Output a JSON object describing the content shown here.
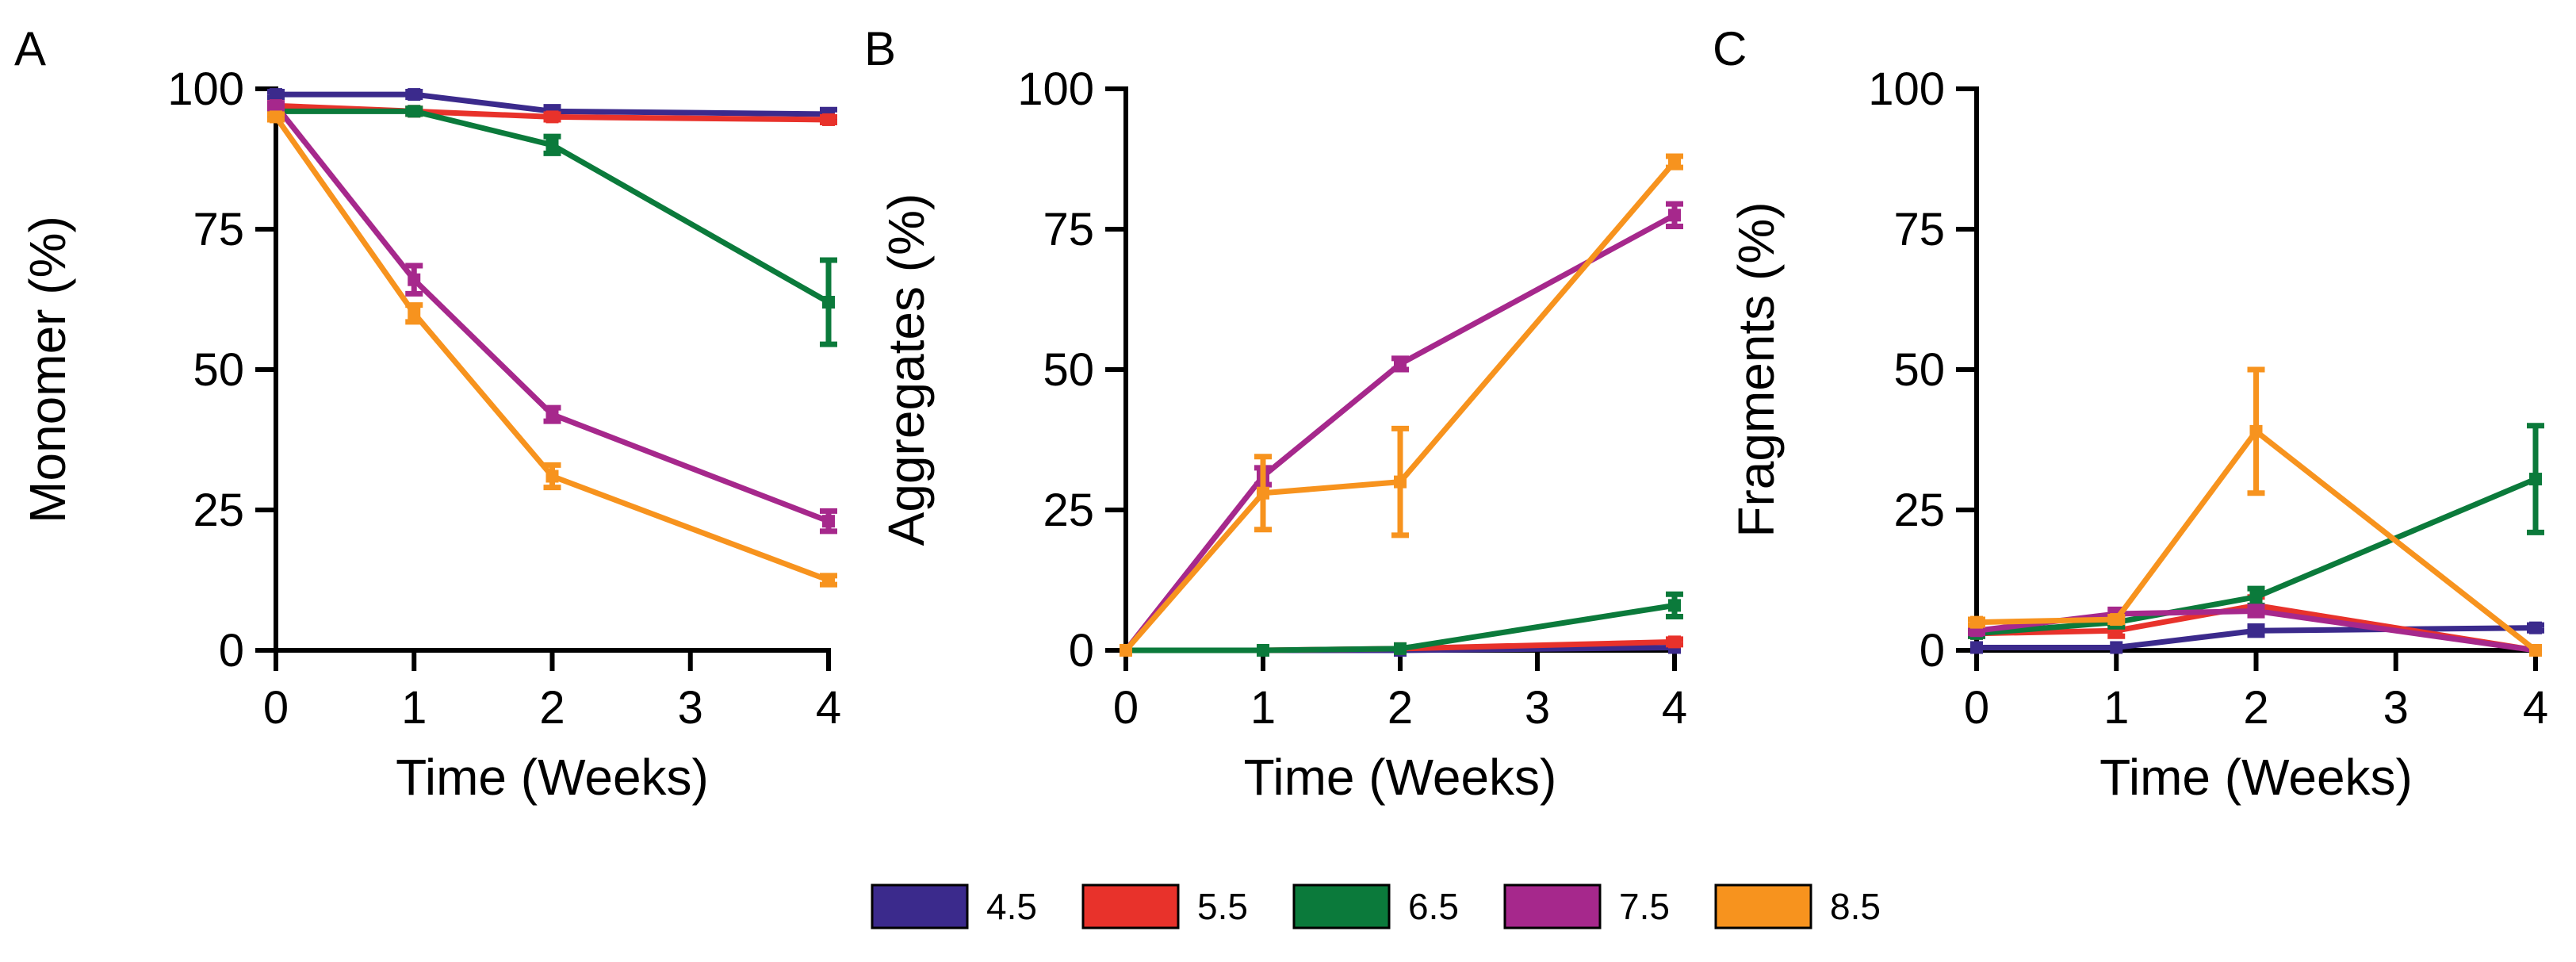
{
  "legend": {
    "items": [
      {
        "label": "4.5",
        "color": "#3B2A8C"
      },
      {
        "label": "5.5",
        "color": "#E8322B"
      },
      {
        "label": "6.5",
        "color": "#0B7A3B"
      },
      {
        "label": "7.5",
        "color": "#A6288C"
      },
      {
        "label": "8.5",
        "color": "#F7931E"
      }
    ]
  },
  "chart_data": [
    {
      "type": "line",
      "panel_label": "A",
      "title": "",
      "xlabel": "Time (Weeks)",
      "ylabel": "Monomer (%)",
      "x_ticks": [
        0,
        1,
        2,
        3,
        4
      ],
      "y_ticks": [
        0,
        25,
        50,
        75,
        100
      ],
      "xlim": [
        0,
        4
      ],
      "ylim": [
        0,
        100
      ],
      "x": [
        0,
        1,
        2,
        4
      ],
      "series": [
        {
          "name": "4.5",
          "values": [
            99,
            99,
            96,
            95.5
          ],
          "errors": [
            0.5,
            0.5,
            0.8,
            0.8
          ]
        },
        {
          "name": "5.5",
          "values": [
            97,
            96,
            95,
            94.5
          ],
          "errors": [
            0.5,
            0.5,
            0.5,
            0.5
          ]
        },
        {
          "name": "6.5",
          "values": [
            96,
            96,
            90,
            62
          ],
          "errors": [
            0.5,
            0.5,
            1.5,
            7.5
          ]
        },
        {
          "name": "7.5",
          "values": [
            97,
            66,
            42,
            23
          ],
          "errors": [
            0.5,
            2.5,
            1.2,
            1.8
          ]
        },
        {
          "name": "8.5",
          "values": [
            95,
            60,
            31,
            12.5
          ],
          "errors": [
            0.5,
            1.5,
            2,
            0.8
          ]
        }
      ]
    },
    {
      "type": "line",
      "panel_label": "B",
      "title": "",
      "xlabel": "Time (Weeks)",
      "ylabel": "Aggregates (%)",
      "x_ticks": [
        0,
        1,
        2,
        3,
        4
      ],
      "y_ticks": [
        0,
        25,
        50,
        75,
        100
      ],
      "xlim": [
        0,
        4
      ],
      "ylim": [
        0,
        100
      ],
      "x": [
        0,
        1,
        2,
        4
      ],
      "series": [
        {
          "name": "4.5",
          "values": [
            0,
            0,
            0,
            0.5
          ],
          "errors": [
            0,
            0,
            0,
            0
          ]
        },
        {
          "name": "5.5",
          "values": [
            0,
            0,
            0.3,
            1.5
          ],
          "errors": [
            0,
            0,
            0,
            0.5
          ]
        },
        {
          "name": "6.5",
          "values": [
            0,
            0,
            0.3,
            8
          ],
          "errors": [
            0,
            0,
            0,
            2
          ]
        },
        {
          "name": "7.5",
          "values": [
            0,
            31,
            51,
            77.5
          ],
          "errors": [
            0,
            1.5,
            1,
            2
          ]
        },
        {
          "name": "8.5",
          "values": [
            0,
            28,
            30,
            87
          ],
          "errors": [
            0,
            6.5,
            9.5,
            1
          ]
        }
      ]
    },
    {
      "type": "line",
      "panel_label": "C",
      "title": "",
      "xlabel": "Time (Weeks)",
      "ylabel": "Fragments (%)",
      "x_ticks": [
        0,
        1,
        2,
        3,
        4
      ],
      "y_ticks": [
        0,
        25,
        50,
        75,
        100
      ],
      "xlim": [
        0,
        4
      ],
      "ylim": [
        0,
        100
      ],
      "x": [
        0,
        1,
        2,
        4
      ],
      "series": [
        {
          "name": "4.5",
          "values": [
            0.5,
            0.5,
            3.5,
            4
          ],
          "errors": [
            0,
            0,
            0.8,
            0.5
          ]
        },
        {
          "name": "5.5",
          "values": [
            3,
            3.5,
            8,
            0
          ],
          "errors": [
            0.5,
            1,
            1.5,
            0
          ]
        },
        {
          "name": "6.5",
          "values": [
            3,
            5,
            9.5,
            30.5
          ],
          "errors": [
            0.5,
            0.8,
            1.5,
            9.5
          ]
        },
        {
          "name": "7.5",
          "values": [
            3.5,
            6.5,
            7,
            0
          ],
          "errors": [
            0.5,
            0.8,
            0.8,
            0
          ]
        },
        {
          "name": "8.5",
          "values": [
            5,
            5.5,
            39,
            0
          ],
          "errors": [
            0.5,
            0.5,
            11,
            0
          ]
        }
      ]
    }
  ]
}
